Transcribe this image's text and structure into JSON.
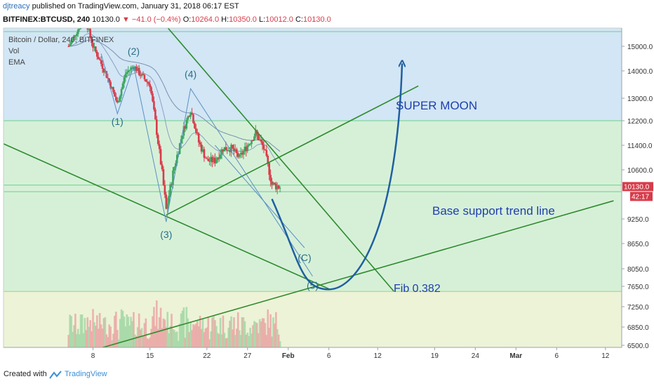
{
  "header": {
    "author": "djtreacy",
    "published": "published on TradingView.com, January 31, 2018 06:17 EST",
    "symbol": "BITFINEX:BTCUSD, 240",
    "last": "10130.0",
    "change": "▼ −41.0 (−0.4%)",
    "ohlc_o_label": "O:",
    "ohlc_o": "10264.0",
    "ohlc_h_label": "H:",
    "ohlc_h": "10350.0",
    "ohlc_l_label": "L:",
    "ohlc_l": "10012.0",
    "ohlc_c_label": "C:",
    "ohlc_c": "10130.0"
  },
  "legend": {
    "title": "Bitcoin / Dollar, 240, BITFINEX",
    "vol": "Vol",
    "ema": "EMA"
  },
  "colors": {
    "up": "#3ba55d",
    "down": "#d83b4a",
    "trend": "#2e8b2e",
    "curve": "#1f5fa0",
    "annotation": "#1f3fae",
    "wave": "#2a6f86",
    "blue_zone": "#d2e6f5",
    "green_zone": "#d6f0d8",
    "yellow_zone": "#edf3d7"
  },
  "chart_data": {
    "type": "candlestick",
    "y_axis": {
      "range": [
        6450,
        15600
      ],
      "ticks": [
        15000.0,
        14000.0,
        13000.0,
        12200.0,
        11400.0,
        10600.0,
        9250.0,
        8650.0,
        8050.0,
        7650.0,
        7250.0,
        6850.0,
        6500.0
      ]
    },
    "x_axis": {
      "tick_labels": [
        "8",
        "15",
        "22",
        "27",
        "Feb",
        "6",
        "12",
        "19",
        "24",
        "Mar",
        "6",
        "12"
      ],
      "tick_dates": [
        "2018-01-08",
        "2018-01-15",
        "2018-01-22",
        "2018-01-27",
        "2018-02-01",
        "2018-02-06",
        "2018-02-12",
        "2018-02-19",
        "2018-02-24",
        "2018-03-01",
        "2018-03-06",
        "2018-03-12"
      ]
    },
    "price_labels": [
      {
        "text": "10130.0",
        "color": "#d83b4a"
      },
      {
        "text": "42:17",
        "color": "#d83b4a"
      }
    ],
    "price_path": [
      [
        "2018-01-05",
        15000
      ],
      [
        "2018-01-07",
        16200
      ],
      [
        "2018-01-08",
        15000
      ],
      [
        "2018-01-10",
        13600
      ],
      [
        "2018-01-11",
        12800
      ],
      [
        "2018-01-12",
        13900
      ],
      [
        "2018-01-13",
        14200
      ],
      [
        "2018-01-14",
        13800
      ],
      [
        "2018-01-15",
        13500
      ],
      [
        "2018-01-16",
        11500
      ],
      [
        "2018-01-17",
        9500
      ],
      [
        "2018-01-18",
        10700
      ],
      [
        "2018-01-19",
        11800
      ],
      [
        "2018-01-20",
        12600
      ],
      [
        "2018-01-21",
        11500
      ],
      [
        "2018-01-22",
        10900
      ],
      [
        "2018-01-23",
        10900
      ],
      [
        "2018-01-24",
        11300
      ],
      [
        "2018-01-25",
        11300
      ],
      [
        "2018-01-26",
        11000
      ],
      [
        "2018-01-27",
        11400
      ],
      [
        "2018-01-28",
        11800
      ],
      [
        "2018-01-29",
        11300
      ],
      [
        "2018-01-30",
        10200
      ],
      [
        "2018-01-31",
        10130
      ]
    ],
    "horizontal_levels": [
      {
        "price": 15600,
        "color": "#6fcf86"
      },
      {
        "price": 12200,
        "color": "#6fcf86"
      },
      {
        "price": 10180,
        "color": "#6fcf86"
      },
      {
        "price": 10000,
        "color": "#6fcf86"
      },
      {
        "price": 7550,
        "color": "#9ed86a"
      }
    ],
    "trend_lines": [
      {
        "from": [
          "2018-01-15",
          16600
        ],
        "to": [
          "2018-02-14",
          7550
        ]
      },
      {
        "from": [
          "2017-12-28",
          11450
        ],
        "to": [
          "2018-02-06",
          7600
        ]
      },
      {
        "from": [
          "2018-01-09",
          6450
        ],
        "to": [
          "2018-03-13",
          9750
        ]
      },
      {
        "from": [
          "2018-01-17",
          9360
        ],
        "to": [
          "2018-02-17",
          13450
        ]
      }
    ],
    "wave_labels": [
      {
        "label": "(1)",
        "at": [
          "2018-01-11",
          12550
        ]
      },
      {
        "label": "(2)",
        "at": [
          "2018-01-13",
          14200
        ]
      },
      {
        "label": "(3)",
        "at": [
          "2018-01-17",
          9230
        ]
      },
      {
        "label": "(4)",
        "at": [
          "2018-01-20",
          13350
        ]
      },
      {
        "label": "(C)",
        "at": [
          "2018-02-03",
          8400
        ]
      },
      {
        "label": "(5)",
        "at": [
          "2018-02-04",
          7850
        ]
      }
    ],
    "annotations": {
      "super_moon": "SUPER MOON",
      "base_support": "Base support trend line",
      "fib": "Fib 0.382"
    }
  },
  "footer": {
    "created_with": "Created with",
    "brand": "TradingView"
  }
}
